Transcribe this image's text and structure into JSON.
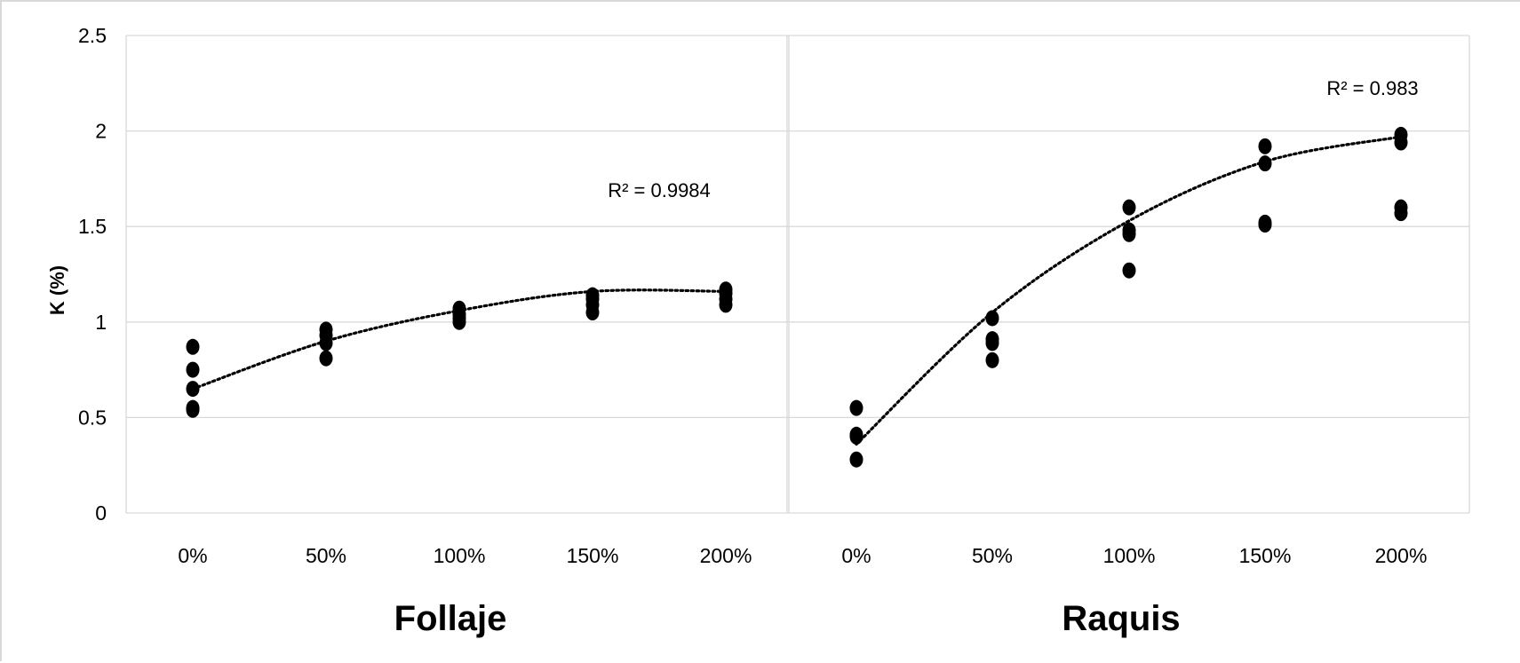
{
  "chart_data": {
    "type": "scatter",
    "ylabel": "K (%)",
    "ylim": [
      0,
      2.5
    ],
    "yticks": [
      "0",
      "0.5",
      "1",
      "1.5",
      "2",
      "2.5"
    ],
    "categories": [
      "0%",
      "50%",
      "100%",
      "150%",
      "200%"
    ],
    "grid": true,
    "marker_color": "#000000",
    "trendline_style": "dotted polynomial",
    "panels": [
      {
        "title": "Follaje",
        "r2_label": "R² = 0.9984",
        "points": [
          {
            "x": "0%",
            "y": [
              0.87,
              0.75,
              0.65,
              0.55,
              0.54
            ]
          },
          {
            "x": "50%",
            "y": [
              0.96,
              0.93,
              0.89,
              0.81
            ]
          },
          {
            "x": "100%",
            "y": [
              1.07,
              1.04,
              1.02,
              1.0
            ]
          },
          {
            "x": "150%",
            "y": [
              1.14,
              1.12,
              1.09,
              1.05
            ]
          },
          {
            "x": "200%",
            "y": [
              1.17,
              1.15,
              1.12,
              1.09
            ]
          }
        ],
        "trend": [
          0.65,
          0.9,
          1.06,
          1.16,
          1.16
        ]
      },
      {
        "title": "Raquis",
        "r2_label": "R² = 0.983",
        "points": [
          {
            "x": "0%",
            "y": [
              0.55,
              0.41,
              0.4,
              0.28
            ]
          },
          {
            "x": "50%",
            "y": [
              1.02,
              0.91,
              0.89,
              0.8
            ]
          },
          {
            "x": "100%",
            "y": [
              1.6,
              1.48,
              1.46,
              1.27
            ]
          },
          {
            "x": "150%",
            "y": [
              1.92,
              1.83,
              1.52,
              1.51
            ]
          },
          {
            "x": "200%",
            "y": [
              1.98,
              1.94,
              1.6,
              1.57
            ]
          }
        ],
        "trend": [
          0.36,
          1.05,
          1.53,
          1.84,
          1.97
        ]
      }
    ]
  }
}
